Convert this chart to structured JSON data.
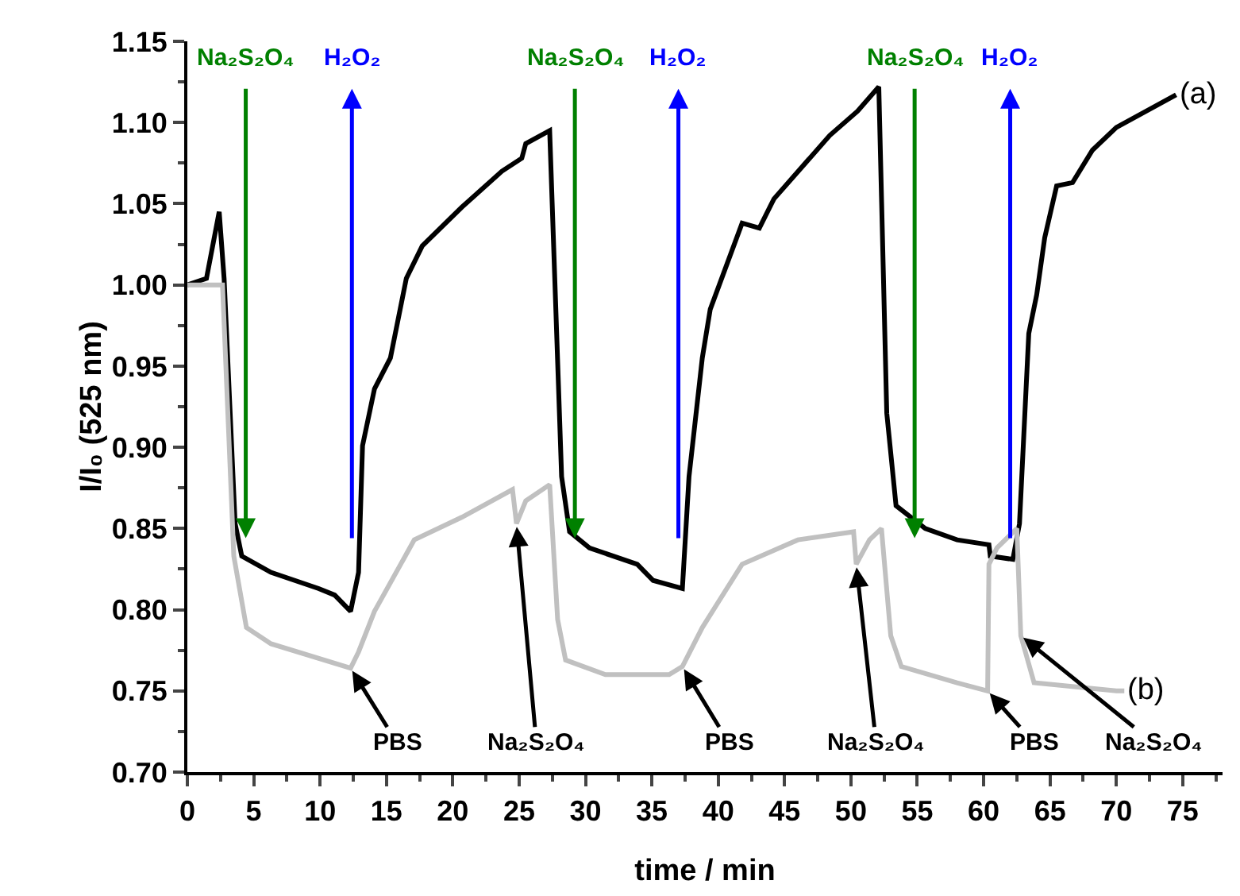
{
  "chart_data": {
    "type": "line",
    "xlabel": "time / min",
    "ylabel": "I/I₀ (525 nm)",
    "xlim": [
      0,
      78
    ],
    "xticks": [
      0,
      5,
      10,
      15,
      20,
      25,
      30,
      35,
      40,
      45,
      50,
      55,
      60,
      65,
      70,
      75
    ],
    "ylim": [
      0.7,
      1.15
    ],
    "yticks": [
      {
        "value": 0.7,
        "label": "0.70"
      },
      {
        "value": 0.75,
        "label": "0.75"
      },
      {
        "value": 0.8,
        "label": "0.80"
      },
      {
        "value": 0.85,
        "label": "0.85"
      },
      {
        "value": 0.9,
        "label": "0.90"
      },
      {
        "value": 0.95,
        "label": "0.95"
      },
      {
        "value": 1.0,
        "label": "1.00"
      },
      {
        "value": 1.05,
        "label": "1.05"
      },
      {
        "value": 1.1,
        "label": "1.10"
      },
      {
        "value": 1.15,
        "label": "1.15"
      }
    ],
    "grid": false,
    "legend": false,
    "marker": "none",
    "line_style": "solid",
    "series": [
      {
        "name": "(a)",
        "color": "#000000",
        "x": [
          0,
          1.44,
          2.4,
          2.77,
          3.6,
          4.1,
          6.3,
          9.9,
          11.1,
          12.3,
          12.9,
          13.2,
          14.1,
          15.3,
          16.5,
          17.7,
          20.7,
          23.7,
          25.2,
          25.5,
          27.3,
          28.2,
          28.8,
          30.3,
          33.9,
          35.1,
          37.3,
          37.8,
          38.8,
          39.4,
          41.8,
          43.1,
          44.2,
          48.4,
          50.5,
          52.1,
          52.7,
          53.4,
          55.6,
          58,
          60.4,
          60.5,
          62.2,
          62.7,
          63.4,
          64,
          64.6,
          65.5,
          66.7,
          68.2,
          70,
          74.5
        ],
        "values": [
          1.0,
          1.004,
          1.045,
          1.004,
          0.853,
          0.833,
          0.823,
          0.813,
          0.809,
          0.799,
          0.823,
          0.901,
          0.936,
          0.955,
          1.004,
          1.024,
          1.048,
          1.07,
          1.078,
          1.087,
          1.095,
          0.882,
          0.848,
          0.838,
          0.828,
          0.818,
          0.813,
          0.882,
          0.955,
          0.985,
          1.038,
          1.035,
          1.053,
          1.092,
          1.107,
          1.122,
          0.921,
          0.864,
          0.85,
          0.843,
          0.84,
          0.833,
          0.831,
          0.853,
          0.97,
          0.994,
          1.029,
          1.061,
          1.063,
          1.083,
          1.097,
          1.117
        ]
      },
      {
        "name": "(b)",
        "color": "#c0c0c0",
        "x": [
          0,
          2.65,
          3.5,
          4.45,
          6.3,
          12.3,
          12.9,
          14.1,
          17.1,
          20.7,
          24.5,
          24.8,
          25.5,
          27.3,
          27.9,
          28.5,
          31.5,
          36.3,
          37.3,
          38.8,
          41.8,
          46,
          50.2,
          50.4,
          51.4,
          52.3,
          53,
          53.8,
          58,
          60.3,
          60.4,
          61,
          62.5,
          62.8,
          63.8,
          70,
          70.6
        ],
        "values": [
          1.0,
          1.0,
          0.833,
          0.789,
          0.779,
          0.764,
          0.774,
          0.799,
          0.843,
          0.857,
          0.874,
          0.853,
          0.867,
          0.877,
          0.794,
          0.769,
          0.76,
          0.76,
          0.765,
          0.789,
          0.828,
          0.843,
          0.848,
          0.828,
          0.843,
          0.85,
          0.784,
          0.765,
          0.755,
          0.75,
          0.828,
          0.838,
          0.85,
          0.784,
          0.755,
          0.75,
          0.75
        ]
      }
    ],
    "ref_lines": [
      {
        "axis": "x",
        "value": 4.4,
        "label": "Na₂S₂O₄",
        "color": "#008000"
      },
      {
        "axis": "x",
        "value": 12.4,
        "label": "H₂O₂",
        "color": "#0000ff"
      },
      {
        "axis": "x",
        "value": 29.2,
        "label": "Na₂S₂O₄",
        "color": "#008000"
      },
      {
        "axis": "x",
        "value": 37.0,
        "label": "H₂O₂",
        "color": "#0000ff"
      },
      {
        "axis": "x",
        "value": 54.8,
        "label": "Na₂S₂O₄",
        "color": "#008000"
      },
      {
        "axis": "x",
        "value": 62.0,
        "label": "H₂O₂",
        "color": "#0000ff"
      }
    ],
    "annotations": [
      {
        "text": "PBS",
        "x": 12.3,
        "y": 0.764
      },
      {
        "text": "Na₂S₂O₄",
        "x": 24.8,
        "y": 0.853
      },
      {
        "text": "PBS",
        "x": 37.3,
        "y": 0.765
      },
      {
        "text": "Na₂S₂O₄",
        "x": 50.4,
        "y": 0.828
      },
      {
        "text": "PBS",
        "x": 60.3,
        "y": 0.75
      },
      {
        "text": "Na₂S₂O₄",
        "x": 62.8,
        "y": 0.784
      }
    ]
  }
}
